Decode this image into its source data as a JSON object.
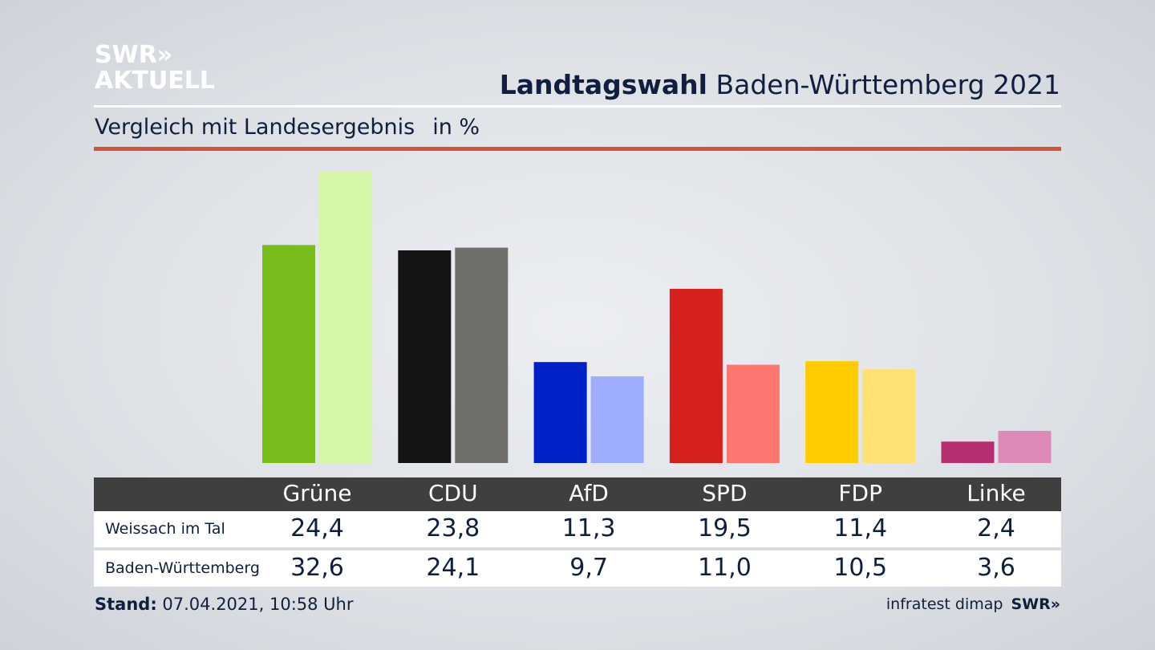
{
  "header": {
    "logo_line1": "SWR»",
    "logo_line2": "AKTUELL",
    "title_bold": "Landtagswahl",
    "title_rest": " Baden-Württemberg 2021",
    "subtitle": "Vergleich mit Landesergebnis",
    "unit": "in %"
  },
  "colors": {
    "accent_rule": "#d2523e",
    "table_header": "#3f3f3f"
  },
  "chart_data": {
    "type": "bar",
    "title": "Landtagswahl Baden-Württemberg 2021",
    "subtitle": "Vergleich mit Landesergebnis",
    "ylabel": "in %",
    "ylim": [
      0,
      32.6
    ],
    "grid": false,
    "categories": [
      "Grüne",
      "CDU",
      "AfD",
      "SPD",
      "FDP",
      "Linke"
    ],
    "series": [
      {
        "name": "Weissach im Tal",
        "values": [
          24.4,
          23.8,
          11.3,
          19.5,
          11.4,
          2.4
        ],
        "labels": [
          "24,4",
          "23,8",
          "11,3",
          "19,5",
          "11,4",
          "2,4"
        ],
        "colors": [
          "#78bd1b",
          "#141414",
          "#0020c8",
          "#d61f1f",
          "#ffcc00",
          "#b52e6f"
        ]
      },
      {
        "name": "Baden-Württemberg",
        "values": [
          32.6,
          24.1,
          9.7,
          11.0,
          10.5,
          3.6
        ],
        "labels": [
          "32,6",
          "24,1",
          "9,7",
          "11,0",
          "10,5",
          "3,6"
        ],
        "colors": [
          "#d5f5a8",
          "#706f6c",
          "#9eacff",
          "#ff7670",
          "#ffe173",
          "#de8ab8"
        ]
      }
    ]
  },
  "footer": {
    "stand_label": "Stand:",
    "stand_value": " 07.04.2021, 10:58 Uhr",
    "source": "infratest dimap",
    "source_logo": "SWR»"
  }
}
